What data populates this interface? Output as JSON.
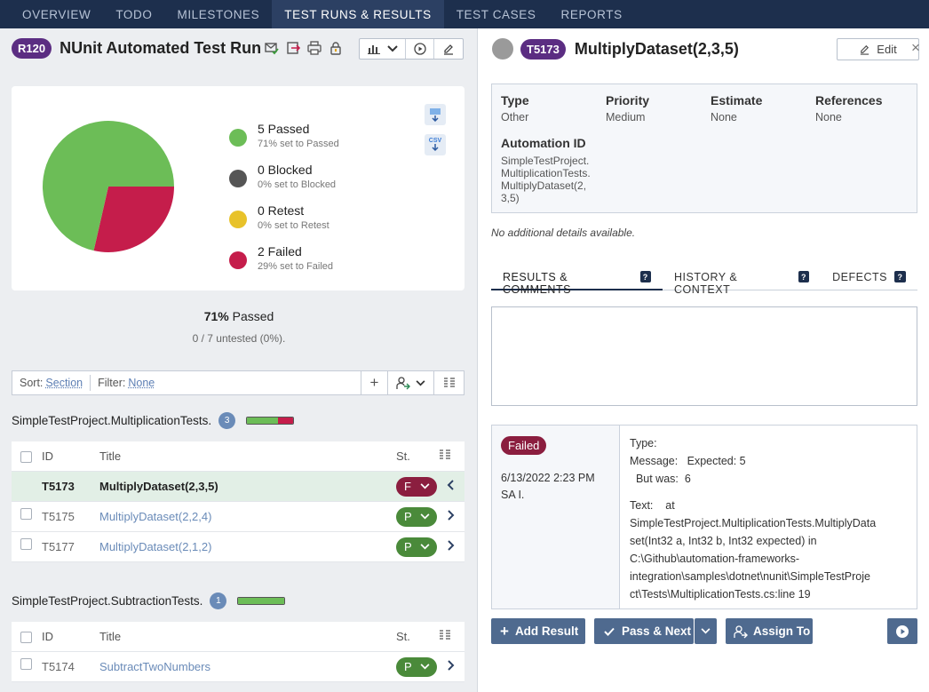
{
  "nav": {
    "tabs": [
      {
        "label": "OVERVIEW"
      },
      {
        "label": "TODO"
      },
      {
        "label": "MILESTONES"
      },
      {
        "label": "TEST RUNS & RESULTS"
      },
      {
        "label": "TEST CASES"
      },
      {
        "label": "REPORTS"
      }
    ],
    "active": "TEST RUNS & RESULTS"
  },
  "run": {
    "id": "R120",
    "title": "NUnit Automated Test Run"
  },
  "chart_data": {
    "type": "pie",
    "categories": [
      "Passed",
      "Blocked",
      "Retest",
      "Failed"
    ],
    "values": [
      5,
      0,
      0,
      2
    ],
    "colors": [
      "#6cbd57",
      "#555555",
      "#e8c22a",
      "#c51d4b"
    ]
  },
  "legend": [
    {
      "name": "5 Passed",
      "sub": "71% set to Passed",
      "color": "#6cbd57"
    },
    {
      "name": "0 Blocked",
      "sub": "0% set to Blocked",
      "color": "#555555"
    },
    {
      "name": "0 Retest",
      "sub": "0% set to Retest",
      "color": "#e8c22a"
    },
    {
      "name": "2 Failed",
      "sub": "29% set to Failed",
      "color": "#c51d4b"
    }
  ],
  "export": {
    "csv": "CSV"
  },
  "summary": {
    "pct": "71%",
    "pct_label": "Passed",
    "untested": "0 / 7 untested (0%)."
  },
  "sortbar": {
    "sort_label": "Sort:",
    "sort_value": "Section",
    "filter_label": "Filter:",
    "filter_value": "None",
    "add": "+"
  },
  "columns": {
    "id": "ID",
    "title": "Title",
    "status": "St."
  },
  "sections": [
    {
      "name": "SimpleTestProject.MultiplicationTests.",
      "count": "3",
      "progress": {
        "passed": 0.67,
        "failed": 0.33
      },
      "rows": [
        {
          "id": "T5173",
          "title": "MultiplyDataset(2,3,5)",
          "status": "F",
          "selected": true
        },
        {
          "id": "T5175",
          "title": "MultiplyDataset(2,2,4)",
          "status": "P"
        },
        {
          "id": "T5177",
          "title": "MultiplyDataset(2,1,2)",
          "status": "P"
        }
      ]
    },
    {
      "name": "SimpleTestProject.SubtractionTests.",
      "count": "1",
      "progress": {
        "passed": 1.0,
        "failed": 0
      },
      "rows": [
        {
          "id": "T5174",
          "title": "SubtractTwoNumbers",
          "status": "P"
        }
      ]
    }
  ],
  "detail": {
    "id": "T5173",
    "title": "MultiplyDataset(2,3,5)",
    "edit": "Edit",
    "close": "×",
    "props": {
      "type_k": "Type",
      "type_v": "Other",
      "priority_k": "Priority",
      "priority_v": "Medium",
      "estimate_k": "Estimate",
      "estimate_v": "None",
      "references_k": "References",
      "references_v": "None",
      "automation_k": "Automation ID",
      "automation_v": "SimpleTestProject.MultiplicationTests.MultiplyDataset(2,3,5)"
    },
    "no_details": "No additional details available.",
    "tabs": [
      {
        "label": "RESULTS & COMMENTS",
        "active": true
      },
      {
        "label": "HISTORY & CONTEXT"
      },
      {
        "label": "DEFECTS"
      }
    ],
    "qmark": "?",
    "result": {
      "status": "Failed",
      "date": "6/13/2022 2:23 PM",
      "user": "SA I.",
      "type_line": "Type:",
      "message_line": "Message:   Expected: 5",
      "butwas_line": "  But was:  6",
      "text_line": "Text:    at",
      "trace": [
        "SimpleTestProject.MultiplicationTests.MultiplyData",
        "set(Int32 a, Int32 b, Int32 expected) in",
        "C:\\Github\\automation-frameworks-",
        "integration\\samples\\dotnet\\nunit\\SimpleTestProje",
        "ct\\Tests\\MultiplicationTests.cs:line 19"
      ]
    },
    "actions": {
      "add_result": "Add Result",
      "pass_next": "Pass & Next",
      "assign_to": "Assign To"
    }
  },
  "colors": {
    "nav_bg": "#1d2f4d",
    "brand_purple": "#5b2d82",
    "passed": "#4a8a3a",
    "failed": "#8b1e3f",
    "action": "#4f6a8f"
  }
}
